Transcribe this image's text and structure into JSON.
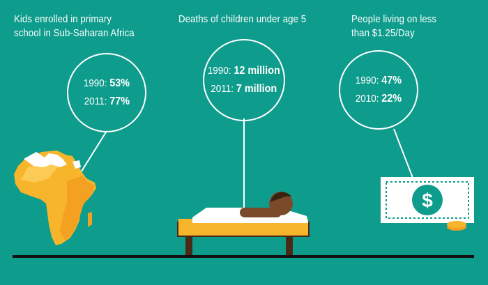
{
  "panels": [
    {
      "title_line1": "Kids enrolled in primary",
      "title_line2": "school in Sub-Saharan Africa",
      "stats": [
        {
          "year": "1990:",
          "value": "53%"
        },
        {
          "year": "2011:",
          "value": "77%"
        }
      ],
      "illustration": "africa-map"
    },
    {
      "title_line1": "Deaths of children under age 5",
      "title_line2": "",
      "stats": [
        {
          "year": "1990:",
          "value": "12 million"
        },
        {
          "year": "2011:",
          "value": "7 million"
        }
      ],
      "illustration": "child-in-bed"
    },
    {
      "title_line1": "People living on less",
      "title_line2": "than $1.25/Day",
      "stats": [
        {
          "year": "1990:",
          "value": "47%"
        },
        {
          "year": "2010:",
          "value": "22%"
        }
      ],
      "illustration": "dollar-bill"
    }
  ],
  "dollar_symbol": "$",
  "colors": {
    "background": "#0E9C8C",
    "accent_yellow": "#F7B52C",
    "accent_orange": "#F4A020",
    "ground": "#111111",
    "bed_frame": "#4A2A15",
    "skin": "#7A4A2A",
    "white": "#FFFFFF"
  }
}
